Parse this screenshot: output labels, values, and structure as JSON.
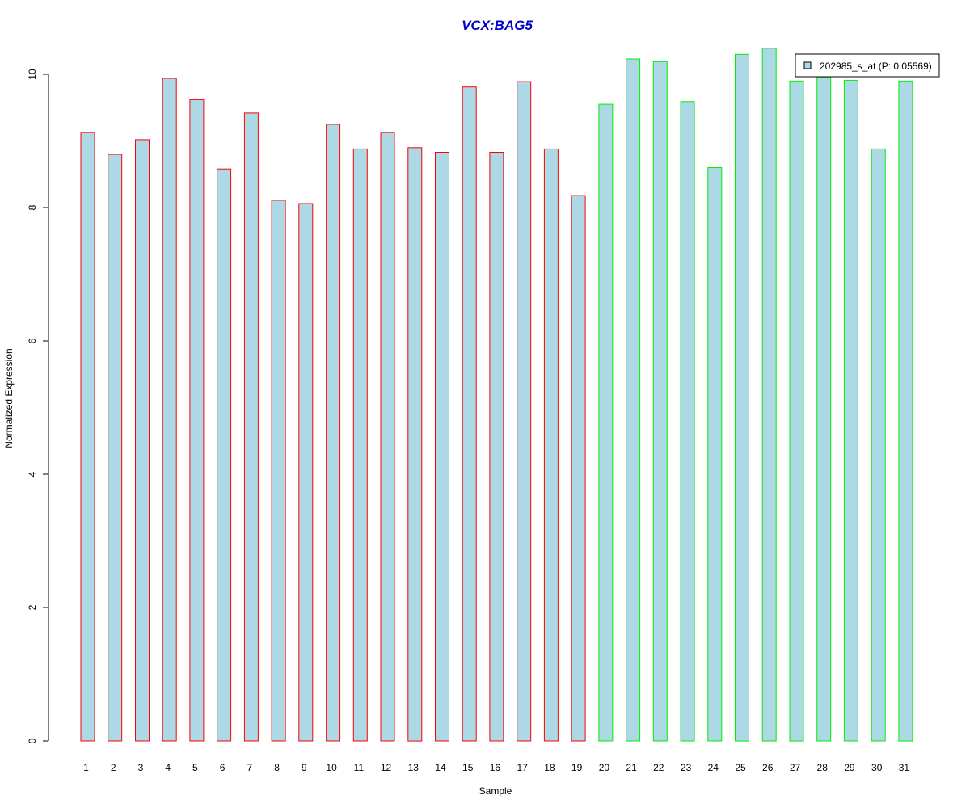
{
  "chart_data": {
    "type": "bar",
    "title": "VCX:BAG5",
    "xlabel": "Sample",
    "ylabel": "Normalized Expression",
    "categories": [
      "1",
      "2",
      "3",
      "4",
      "5",
      "6",
      "7",
      "8",
      "9",
      "10",
      "11",
      "12",
      "13",
      "14",
      "15",
      "16",
      "17",
      "18",
      "19",
      "20",
      "21",
      "22",
      "23",
      "24",
      "25",
      "26",
      "27",
      "28",
      "29",
      "30",
      "31"
    ],
    "series": [
      {
        "name": "202985_s_at (P: 0.05569)",
        "values": [
          9.13,
          8.8,
          9.02,
          9.94,
          9.62,
          8.58,
          9.42,
          8.11,
          8.06,
          9.25,
          8.88,
          9.13,
          8.9,
          8.83,
          9.81,
          8.83,
          9.89,
          8.88,
          8.18,
          9.55,
          10.23,
          10.19,
          9.59,
          8.6,
          10.3,
          10.39,
          9.9,
          9.95,
          9.91,
          8.88,
          9.9
        ]
      }
    ],
    "groups": [
      {
        "from": 1,
        "to": 19,
        "border_color": "#ff0000"
      },
      {
        "from": 20,
        "to": 31,
        "border_color": "#00ee00"
      }
    ],
    "ylim": [
      0,
      10.4
    ],
    "yticks": [
      0,
      2,
      4,
      6,
      8,
      10
    ],
    "grid": false,
    "legend": {
      "position": "top-right",
      "label": "202985_s_at (P: 0.05569)"
    },
    "colors": {
      "bar_fill": "#add8e6",
      "title": "#0000cd",
      "axis": "#000000"
    }
  }
}
